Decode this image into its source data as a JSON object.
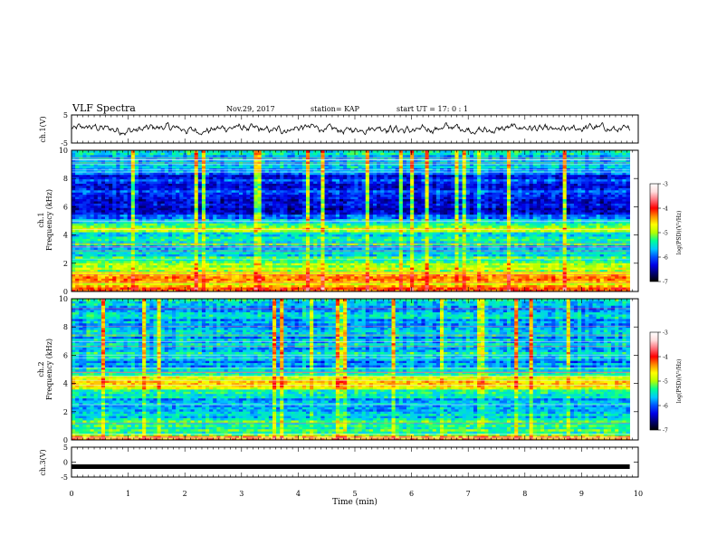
{
  "header": {
    "title": "VLF Spectra",
    "date": "Nov.29, 2017",
    "station": "station= KAP",
    "start": "start UT = 17: 0 : 1"
  },
  "colorbar": {
    "label": "log(PSD)(V²/Hz)",
    "ticks": [
      "-3",
      "-4",
      "-5",
      "-6",
      "-7"
    ],
    "range": [
      -7,
      -3
    ],
    "colors": [
      "#000000",
      "#00006e",
      "#0000e6",
      "#0050ff",
      "#00c8ff",
      "#00ff96",
      "#b4ff00",
      "#ffff00",
      "#ff8c00",
      "#ff0000",
      "#ff6e78",
      "#ffdcdc",
      "#ffffff"
    ]
  },
  "chart_data": [
    {
      "type": "line",
      "panel": "ch1-waveform",
      "ylabel": "ch.1(V)",
      "ylim": [
        -5,
        5
      ],
      "yticks": [
        "5",
        "-5"
      ],
      "x_range_min": [
        0,
        10
      ],
      "data_end_min": 9.85,
      "description_values": {
        "mean": 0,
        "amplitude_approx": 1.5
      }
    },
    {
      "type": "heatmap",
      "panel": "ch1-spectrogram",
      "ylabel": "ch.1\nFrequency (kHz)",
      "ylim": [
        0,
        10
      ],
      "yticks": [
        "0",
        "2",
        "4",
        "6",
        "8",
        "10"
      ],
      "x_range_min": [
        0,
        10
      ],
      "data_end_min": 9.85,
      "freq_profile_logpsd": [
        [
          0.0,
          -3.8
        ],
        [
          0.5,
          -4.6
        ],
        [
          1.0,
          -4.2
        ],
        [
          1.5,
          -5.0
        ],
        [
          2.0,
          -5.0
        ],
        [
          2.5,
          -5.4
        ],
        [
          3.0,
          -5.9
        ],
        [
          3.5,
          -5.3
        ],
        [
          4.0,
          -5.5
        ],
        [
          4.5,
          -4.9
        ],
        [
          5.0,
          -5.6
        ],
        [
          5.5,
          -6.3
        ],
        [
          6.0,
          -6.6
        ],
        [
          7.0,
          -6.1
        ],
        [
          8.0,
          -6.2
        ],
        [
          9.0,
          -5.7
        ],
        [
          10.0,
          -5.5
        ]
      ]
    },
    {
      "type": "heatmap",
      "panel": "ch2-spectrogram",
      "ylabel": "ch.2\nFrequency (kHz)",
      "ylim": [
        0,
        10
      ],
      "yticks": [
        "0",
        "2",
        "4",
        "6",
        "8",
        "10"
      ],
      "x_range_min": [
        0,
        10
      ],
      "data_end_min": 9.85,
      "freq_profile_logpsd": [
        [
          0.0,
          -3.9
        ],
        [
          0.5,
          -5.4
        ],
        [
          1.0,
          -5.2
        ],
        [
          1.5,
          -5.4
        ],
        [
          2.0,
          -5.6
        ],
        [
          2.5,
          -5.8
        ],
        [
          3.0,
          -5.7
        ],
        [
          3.5,
          -5.3
        ],
        [
          4.0,
          -4.6
        ],
        [
          4.5,
          -5.0
        ],
        [
          5.0,
          -5.5
        ],
        [
          5.5,
          -5.9
        ],
        [
          6.0,
          -5.6
        ],
        [
          7.0,
          -5.7
        ],
        [
          8.0,
          -5.6
        ],
        [
          9.0,
          -5.8
        ],
        [
          10.0,
          -5.6
        ]
      ]
    },
    {
      "type": "line",
      "panel": "ch3-waveform",
      "ylabel": "ch.3(V)",
      "ylim": [
        -5,
        5
      ],
      "yticks": [
        "5",
        "0",
        "-5"
      ],
      "x_range_min": [
        0,
        10
      ],
      "data_end_min": 9.85,
      "constant_value": -1.5
    }
  ],
  "x_axis": {
    "label": "Time (min)",
    "ticks": [
      "0",
      "1",
      "2",
      "3",
      "4",
      "5",
      "6",
      "7",
      "8",
      "9",
      "10"
    ]
  }
}
